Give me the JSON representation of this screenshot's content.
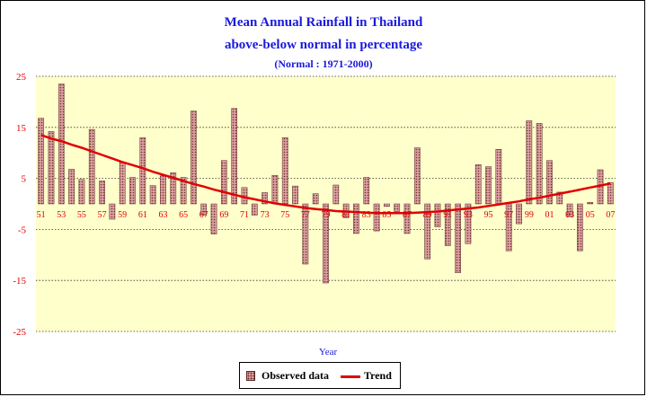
{
  "colors": {
    "bar_fill": "#d9a0a0",
    "bar_dots": "#7a3030",
    "bar_edge": "#5a2a2a",
    "trend": "#e00000",
    "plot_bg": "#ffffcc",
    "axis_text": "#e00000",
    "title": "#1a1adc"
  },
  "chart_data": {
    "type": "bar",
    "title": "Mean Annual Rainfall in Thailand",
    "subtitle": "above-below normal in percentage",
    "subtitle2": "(Normal : 1971-2000)",
    "xlabel": "Year",
    "ylabel": "",
    "ylim": [
      -25,
      25
    ],
    "yticks": [
      25,
      15,
      5,
      -5,
      -15,
      -25
    ],
    "grid": true,
    "legend_position": "bottom",
    "x": [
      "51",
      "52",
      "53",
      "54",
      "55",
      "56",
      "57",
      "58",
      "59",
      "60",
      "61",
      "62",
      "63",
      "64",
      "65",
      "66",
      "67",
      "68",
      "69",
      "70",
      "71",
      "72",
      "73",
      "74",
      "75",
      "76",
      "77",
      "78",
      "79",
      "80",
      "81",
      "82",
      "83",
      "84",
      "85",
      "86",
      "87",
      "88",
      "89",
      "90",
      "91",
      "92",
      "93",
      "94",
      "95",
      "96",
      "97",
      "98",
      "99",
      "00",
      "01",
      "02",
      "03",
      "04",
      "05",
      "06",
      "07"
    ],
    "xtick_labels": [
      "51",
      "53",
      "55",
      "57",
      "59",
      "61",
      "63",
      "65",
      "67",
      "69",
      "71",
      "73",
      "75",
      "77",
      "79",
      "81",
      "83",
      "85",
      "87",
      "89",
      "91",
      "93",
      "95",
      "97",
      "99",
      "01",
      "03",
      "05",
      "07"
    ],
    "series": [
      {
        "name": "Observed data",
        "type": "bar",
        "values": [
          16.8,
          14.2,
          23.5,
          6.8,
          4.8,
          14.6,
          4.5,
          -3,
          8.1,
          5.2,
          13,
          3.6,
          5.5,
          6.1,
          5.2,
          18.2,
          -2.2,
          -5.9,
          8.5,
          18.7,
          3.2,
          -2.2,
          2.2,
          5.6,
          13,
          3.5,
          -11.8,
          2,
          -15.5,
          3.7,
          -2.7,
          -5.8,
          5.2,
          -5.3,
          -0.5,
          -1.5,
          -5.8,
          11,
          -10.8,
          -4.5,
          -8.2,
          -13.5,
          -7.8,
          7.7,
          7.3,
          10.7,
          -9.2,
          -3.9,
          16.3,
          15.8,
          8.5,
          2.3,
          -2.5,
          -9.2,
          0.3,
          6.7,
          4.2
        ]
      },
      {
        "name": "Trend",
        "type": "line",
        "values": [
          13.5,
          12.8,
          12.3,
          11.6,
          11,
          10.3,
          9.6,
          8.9,
          8.2,
          7.6,
          7,
          6.3,
          5.7,
          5.1,
          4.5,
          3.9,
          3.4,
          2.8,
          2.3,
          1.8,
          1.3,
          0.9,
          0.5,
          0.1,
          -0.2,
          -0.5,
          -0.8,
          -1,
          -1.2,
          -1.4,
          -1.5,
          -1.6,
          -1.7,
          -1.8,
          -1.8,
          -1.8,
          -1.8,
          -1.7,
          -1.6,
          -1.5,
          -1.3,
          -1.1,
          -0.9,
          -0.7,
          -0.4,
          -0.1,
          0.2,
          0.5,
          0.9,
          1.2,
          1.6,
          2,
          2.4,
          2.8,
          3.2,
          3.6,
          4
        ]
      }
    ]
  }
}
